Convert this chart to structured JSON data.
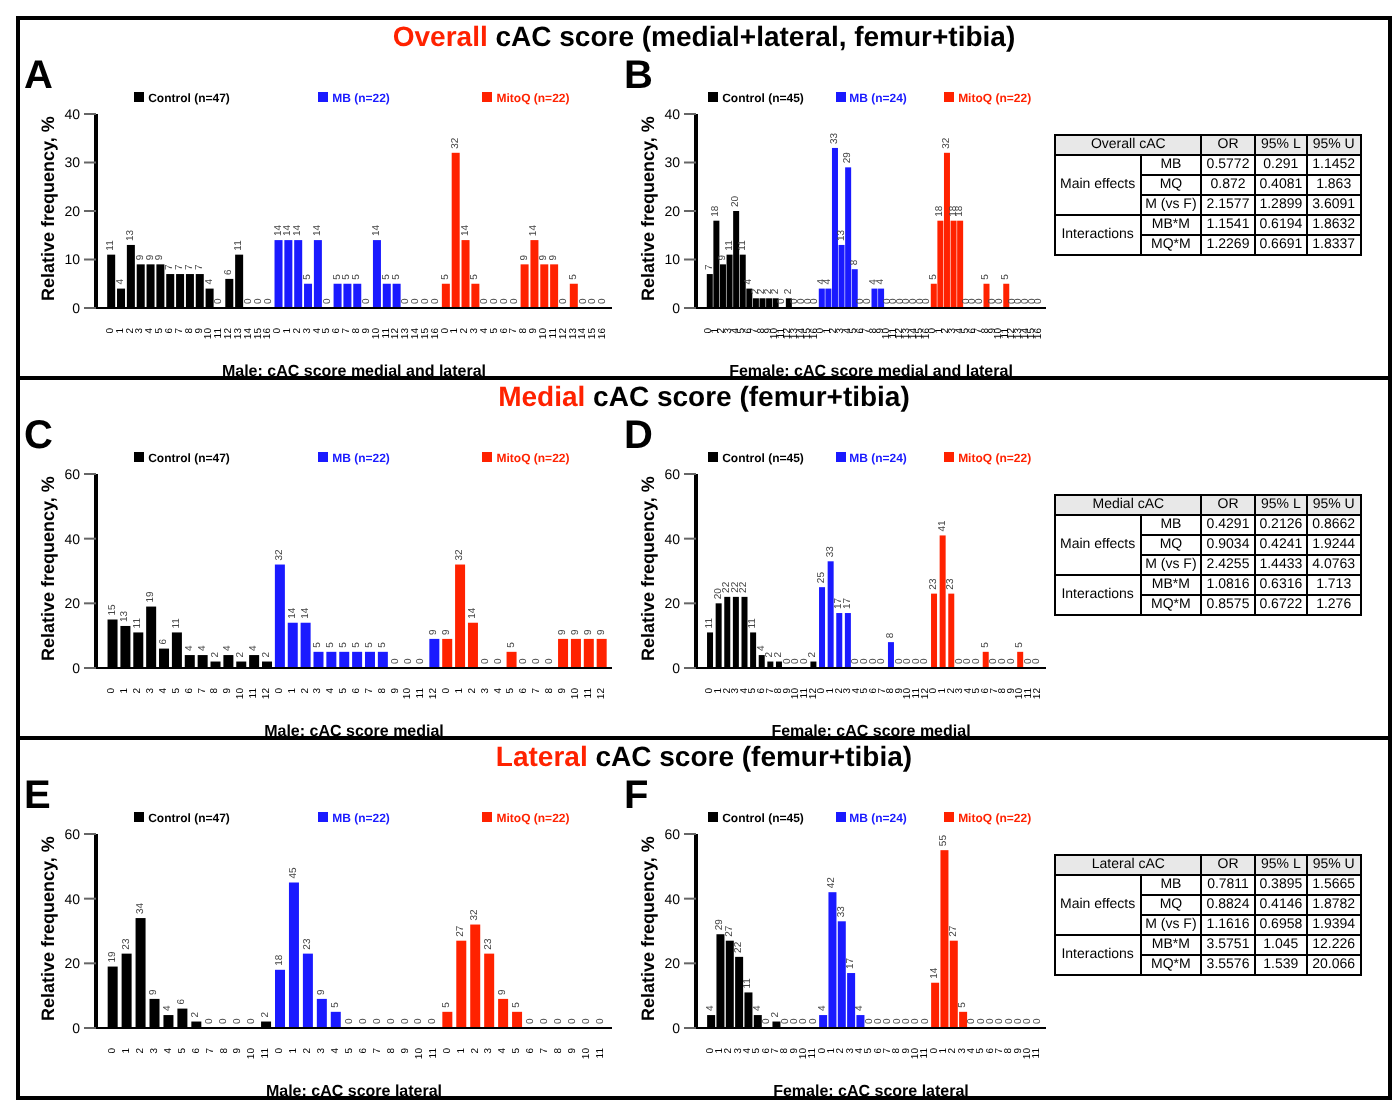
{
  "chart_data": [
    {
      "type": "bar",
      "title": "Overall cAC score (medial+lateral, femur+tibia)",
      "annotations": [
        "A"
      ],
      "xlabel": "Male: cAC score medial and lateral",
      "ylabel": "Relative frequency, %",
      "ylim": [
        0,
        40
      ],
      "yticks": [
        0,
        10,
        20,
        30,
        40
      ],
      "data_labels": true,
      "legend": "top",
      "categories": [
        "0",
        "1",
        "2",
        "3",
        "4",
        "5",
        "6",
        "7",
        "8",
        "9",
        "10",
        "11",
        "12",
        "13",
        "14",
        "15",
        "16",
        "0",
        "1",
        "2",
        "3",
        "4",
        "5",
        "6",
        "7",
        "8",
        "9",
        "10",
        "11",
        "12",
        "13",
        "14",
        "15",
        "16",
        "0",
        "1",
        "2",
        "3",
        "4",
        "5",
        "6",
        "7",
        "8",
        "9",
        "10",
        "11",
        "12",
        "13",
        "14",
        "15",
        "16"
      ],
      "series": [
        {
          "name": "Control (n=47)",
          "color": "#000000",
          "values": [
            11,
            4,
            13,
            9,
            9,
            9,
            7,
            7,
            7,
            7,
            4,
            0,
            6,
            11,
            0,
            0,
            0,
            null,
            null,
            null,
            null,
            null,
            null,
            null,
            null,
            null,
            null,
            null,
            null,
            null,
            null,
            null,
            null,
            null,
            null,
            null,
            null,
            null,
            null,
            null,
            null,
            null,
            null,
            null,
            null,
            null,
            null,
            null,
            null,
            null,
            null
          ]
        },
        {
          "name": "MB (n=22)",
          "color": "#1a1aff",
          "values": [
            null,
            null,
            null,
            null,
            null,
            null,
            null,
            null,
            null,
            null,
            null,
            null,
            null,
            null,
            null,
            null,
            null,
            14,
            14,
            14,
            5,
            14,
            0,
            5,
            5,
            5,
            0,
            14,
            5,
            5,
            0,
            0,
            0,
            0,
            null,
            null,
            null,
            null,
            null,
            null,
            null,
            null,
            null,
            null,
            null,
            null,
            null,
            null,
            null,
            null,
            null
          ]
        },
        {
          "name": "MitoQ (n=22)",
          "color": "#ff2200",
          "values": [
            null,
            null,
            null,
            null,
            null,
            null,
            null,
            null,
            null,
            null,
            null,
            null,
            null,
            null,
            null,
            null,
            null,
            null,
            null,
            null,
            null,
            null,
            null,
            null,
            null,
            null,
            null,
            null,
            null,
            null,
            null,
            null,
            null,
            null,
            5,
            32,
            14,
            5,
            0,
            0,
            0,
            0,
            9,
            14,
            9,
            9,
            0,
            5,
            0,
            0,
            0
          ]
        }
      ]
    },
    {
      "type": "bar",
      "annotations": [
        "B"
      ],
      "xlabel": "Female: cAC score medial and lateral",
      "ylabel": "Relative frequency, %",
      "ylim": [
        0,
        40
      ],
      "yticks": [
        0,
        10,
        20,
        30,
        40
      ],
      "data_labels": true,
      "legend": "top",
      "categories": [
        "0",
        "1",
        "2",
        "3",
        "4",
        "5",
        "6",
        "7",
        "8",
        "9",
        "10",
        "11",
        "12",
        "13",
        "14",
        "15",
        "16",
        "0",
        "1",
        "2",
        "3",
        "4",
        "5",
        "6",
        "7",
        "8",
        "9",
        "10",
        "11",
        "12",
        "13",
        "14",
        "15",
        "16",
        "0",
        "1",
        "2",
        "3",
        "4",
        "5",
        "6",
        "7",
        "8",
        "9",
        "10",
        "11",
        "12",
        "13",
        "14",
        "15",
        "16"
      ],
      "series": [
        {
          "name": "Control (n=45)",
          "color": "#000000",
          "values": [
            7,
            18,
            9,
            11,
            20,
            11,
            4,
            2,
            2,
            2,
            2,
            0,
            2,
            0,
            0,
            0,
            0,
            null,
            null,
            null,
            null,
            null,
            null,
            null,
            null,
            null,
            null,
            null,
            null,
            null,
            null,
            null,
            null,
            null,
            null,
            null,
            null,
            null,
            null,
            null,
            null,
            null,
            null,
            null,
            null,
            null,
            null,
            null,
            null,
            null,
            null
          ]
        },
        {
          "name": "MB (n=24)",
          "color": "#1a1aff",
          "values": [
            null,
            null,
            null,
            null,
            null,
            null,
            null,
            null,
            null,
            null,
            null,
            null,
            null,
            null,
            null,
            null,
            null,
            4,
            4,
            33,
            13,
            29,
            8,
            0,
            0,
            4,
            4,
            0,
            0,
            0,
            0,
            0,
            0,
            0,
            null,
            null,
            null,
            null,
            null,
            null,
            null,
            null,
            null,
            null,
            null,
            null,
            null,
            null,
            null,
            null,
            null
          ]
        },
        {
          "name": "MitoQ (n=22)",
          "color": "#ff2200",
          "values": [
            null,
            null,
            null,
            null,
            null,
            null,
            null,
            null,
            null,
            null,
            null,
            null,
            null,
            null,
            null,
            null,
            null,
            null,
            null,
            null,
            null,
            null,
            null,
            null,
            null,
            null,
            null,
            null,
            null,
            null,
            null,
            null,
            null,
            null,
            5,
            18,
            32,
            18,
            18,
            0,
            0,
            0,
            5,
            0,
            0,
            5,
            0,
            0,
            0,
            0,
            0
          ]
        }
      ]
    },
    {
      "type": "other",
      "title": "Overall cAC",
      "annotations": [
        "OR",
        "95% L",
        "95% U",
        "Main effects",
        "MB",
        "0.5772",
        "0.291",
        "1.1452",
        "MQ",
        "0.872",
        "0.4081",
        "1.863",
        "M (vs F)",
        "2.1577",
        "1.2899",
        "3.6091",
        "Interactions",
        "MB*M",
        "1.1541",
        "0.6194",
        "1.8632",
        "MQ*M",
        "1.2269",
        "0.6691",
        "1.8337"
      ]
    },
    {
      "type": "bar",
      "title": "Medial cAC score (femur+tibia)",
      "annotations": [
        "C"
      ],
      "xlabel": "Male: cAC score medial",
      "ylabel": "Relative frequency, %",
      "ylim": [
        0,
        60
      ],
      "yticks": [
        0,
        20,
        40,
        60
      ],
      "data_labels": true,
      "legend": "top",
      "categories": [
        "0",
        "1",
        "2",
        "3",
        "4",
        "5",
        "6",
        "7",
        "8",
        "9",
        "10",
        "11",
        "12",
        "0",
        "1",
        "2",
        "3",
        "4",
        "5",
        "6",
        "7",
        "8",
        "9",
        "10",
        "11",
        "12",
        "0",
        "1",
        "2",
        "3",
        "4",
        "5",
        "6",
        "7",
        "8",
        "9",
        "10",
        "11",
        "12"
      ],
      "series": [
        {
          "name": "Control (n=47)",
          "color": "#000000",
          "values": [
            15,
            13,
            11,
            19,
            6,
            11,
            4,
            4,
            2,
            4,
            2,
            4,
            2,
            null,
            null,
            null,
            null,
            null,
            null,
            null,
            null,
            null,
            null,
            null,
            null,
            null,
            null,
            null,
            null,
            null,
            null,
            null,
            null,
            null,
            null,
            null,
            null,
            null,
            null
          ]
        },
        {
          "name": "MB (n=22)",
          "color": "#1a1aff",
          "values": [
            null,
            null,
            null,
            null,
            null,
            null,
            null,
            null,
            null,
            null,
            null,
            null,
            null,
            32,
            14,
            14,
            5,
            5,
            5,
            5,
            5,
            5,
            0,
            0,
            0,
            9,
            null,
            null,
            null,
            null,
            null,
            null,
            null,
            null,
            null,
            null,
            null,
            null,
            null
          ]
        },
        {
          "name": "MitoQ (n=22)",
          "color": "#ff2200",
          "values": [
            null,
            null,
            null,
            null,
            null,
            null,
            null,
            null,
            null,
            null,
            null,
            null,
            null,
            null,
            null,
            null,
            null,
            null,
            null,
            null,
            null,
            null,
            null,
            null,
            null,
            null,
            9,
            32,
            14,
            0,
            0,
            5,
            0,
            0,
            0,
            9,
            9,
            9,
            9
          ]
        }
      ]
    },
    {
      "type": "bar",
      "annotations": [
        "D"
      ],
      "xlabel": "Female: cAC score medial",
      "ylabel": "Relative frequency, %",
      "ylim": [
        0,
        60
      ],
      "yticks": [
        0,
        20,
        40,
        60
      ],
      "data_labels": true,
      "legend": "top",
      "categories": [
        "0",
        "1",
        "2",
        "3",
        "4",
        "5",
        "6",
        "7",
        "8",
        "9",
        "10",
        "11",
        "12",
        "0",
        "1",
        "2",
        "3",
        "4",
        "5",
        "6",
        "7",
        "8",
        "9",
        "10",
        "11",
        "12",
        "0",
        "1",
        "2",
        "3",
        "4",
        "5",
        "6",
        "7",
        "8",
        "9",
        "10",
        "11",
        "12"
      ],
      "series": [
        {
          "name": "Control (n=45)",
          "color": "#000000",
          "values": [
            11,
            20,
            22,
            22,
            22,
            11,
            4,
            2,
            2,
            0,
            0,
            0,
            2,
            null,
            null,
            null,
            null,
            null,
            null,
            null,
            null,
            null,
            null,
            null,
            null,
            null,
            null,
            null,
            null,
            null,
            null,
            null,
            null,
            null,
            null,
            null,
            null,
            null,
            null
          ]
        },
        {
          "name": "MB (n=24)",
          "color": "#1a1aff",
          "values": [
            null,
            null,
            null,
            null,
            null,
            null,
            null,
            null,
            null,
            null,
            null,
            null,
            null,
            25,
            33,
            17,
            17,
            0,
            0,
            0,
            0,
            8,
            0,
            0,
            0,
            0,
            null,
            null,
            null,
            null,
            null,
            null,
            null,
            null,
            null,
            null,
            null,
            null,
            null
          ]
        },
        {
          "name": "MitoQ (n=22)",
          "color": "#ff2200",
          "values": [
            null,
            null,
            null,
            null,
            null,
            null,
            null,
            null,
            null,
            null,
            null,
            null,
            null,
            null,
            null,
            null,
            null,
            null,
            null,
            null,
            null,
            null,
            null,
            null,
            null,
            null,
            23,
            41,
            23,
            0,
            0,
            0,
            5,
            0,
            0,
            0,
            5,
            0,
            0
          ]
        }
      ]
    },
    {
      "type": "other",
      "title": "Medial cAC",
      "annotations": [
        "OR",
        "95% L",
        "95% U",
        "Main effects",
        "MB",
        "0.4291",
        "0.2126",
        "0.8662",
        "MQ",
        "0.9034",
        "0.4241",
        "1.9244",
        "M (vs F)",
        "2.4255",
        "1.4433",
        "4.0763",
        "Interactions",
        "MB*M",
        "1.0816",
        "0.6316",
        "1.713",
        "MQ*M",
        "0.8575",
        "0.6722",
        "1.276"
      ]
    },
    {
      "type": "bar",
      "title": "Lateral cAC score (femur+tibia)",
      "annotations": [
        "E"
      ],
      "xlabel": "Male: cAC score lateral",
      "ylabel": "Relative frequency, %",
      "ylim": [
        0,
        60
      ],
      "yticks": [
        0,
        20,
        40,
        60
      ],
      "data_labels": true,
      "legend": "top",
      "categories": [
        "0",
        "1",
        "2",
        "3",
        "4",
        "5",
        "6",
        "7",
        "8",
        "9",
        "10",
        "11",
        "0",
        "1",
        "2",
        "3",
        "4",
        "5",
        "6",
        "7",
        "8",
        "9",
        "10",
        "11",
        "0",
        "1",
        "2",
        "3",
        "4",
        "5",
        "6",
        "7",
        "8",
        "9",
        "10",
        "11"
      ],
      "series": [
        {
          "name": "Control (n=47)",
          "color": "#000000",
          "values": [
            19,
            23,
            34,
            9,
            4,
            6,
            2,
            0,
            0,
            0,
            0,
            2,
            null,
            null,
            null,
            null,
            null,
            null,
            null,
            null,
            null,
            null,
            null,
            null,
            null,
            null,
            null,
            null,
            null,
            null,
            null,
            null,
            null,
            null,
            null,
            null
          ]
        },
        {
          "name": "MB (n=22)",
          "color": "#1a1aff",
          "values": [
            null,
            null,
            null,
            null,
            null,
            null,
            null,
            null,
            null,
            null,
            null,
            null,
            18,
            45,
            23,
            9,
            5,
            0,
            0,
            0,
            0,
            0,
            0,
            0,
            null,
            null,
            null,
            null,
            null,
            null,
            null,
            null,
            null,
            null,
            null,
            null
          ]
        },
        {
          "name": "MitoQ (n=22)",
          "color": "#ff2200",
          "values": [
            null,
            null,
            null,
            null,
            null,
            null,
            null,
            null,
            null,
            null,
            null,
            null,
            null,
            null,
            null,
            null,
            null,
            null,
            null,
            null,
            null,
            null,
            null,
            null,
            5,
            27,
            32,
            23,
            9,
            5,
            0,
            0,
            0,
            0,
            0,
            0
          ]
        }
      ]
    },
    {
      "type": "bar",
      "annotations": [
        "F"
      ],
      "xlabel": "Female: cAC score lateral",
      "ylabel": "Relative frequency, %",
      "ylim": [
        0,
        60
      ],
      "yticks": [
        0,
        20,
        40,
        60
      ],
      "data_labels": true,
      "legend": "top",
      "categories": [
        "0",
        "1",
        "2",
        "3",
        "4",
        "5",
        "6",
        "7",
        "8",
        "9",
        "10",
        "11",
        "0",
        "1",
        "2",
        "3",
        "4",
        "5",
        "6",
        "7",
        "8",
        "9",
        "10",
        "11",
        "0",
        "1",
        "2",
        "3",
        "4",
        "5",
        "6",
        "7",
        "8",
        "9",
        "10",
        "11"
      ],
      "series": [
        {
          "name": "Control (n=45)",
          "color": "#000000",
          "values": [
            4,
            29,
            27,
            22,
            11,
            4,
            0,
            2,
            0,
            0,
            0,
            0,
            null,
            null,
            null,
            null,
            null,
            null,
            null,
            null,
            null,
            null,
            null,
            null,
            null,
            null,
            null,
            null,
            null,
            null,
            null,
            null,
            null,
            null,
            null,
            null
          ]
        },
        {
          "name": "MB (n=24)",
          "color": "#1a1aff",
          "values": [
            null,
            null,
            null,
            null,
            null,
            null,
            null,
            null,
            null,
            null,
            null,
            null,
            4,
            42,
            33,
            17,
            4,
            0,
            0,
            0,
            0,
            0,
            0,
            0,
            null,
            null,
            null,
            null,
            null,
            null,
            null,
            null,
            null,
            null,
            null,
            null
          ]
        },
        {
          "name": "MitoQ (n=22)",
          "color": "#ff2200",
          "values": [
            null,
            null,
            null,
            null,
            null,
            null,
            null,
            null,
            null,
            null,
            null,
            null,
            null,
            null,
            null,
            null,
            null,
            null,
            null,
            null,
            null,
            null,
            null,
            null,
            14,
            55,
            27,
            5,
            0,
            0,
            0,
            0,
            0,
            0,
            0,
            0
          ]
        }
      ]
    },
    {
      "type": "other",
      "title": "Lateral cAC",
      "annotations": [
        "OR",
        "95% L",
        "95% U",
        "Main effects",
        "MB",
        "0.7811",
        "0.3895",
        "1.5665",
        "MQ",
        "0.8824",
        "0.4146",
        "1.8782",
        "M (vs F)",
        "1.1616",
        "0.6958",
        "1.9394",
        "Interactions",
        "MB*M",
        "3.5751",
        "1.045",
        "12.226",
        "MQ*M",
        "3.5576",
        "1.539",
        "20.066"
      ]
    }
  ]
}
